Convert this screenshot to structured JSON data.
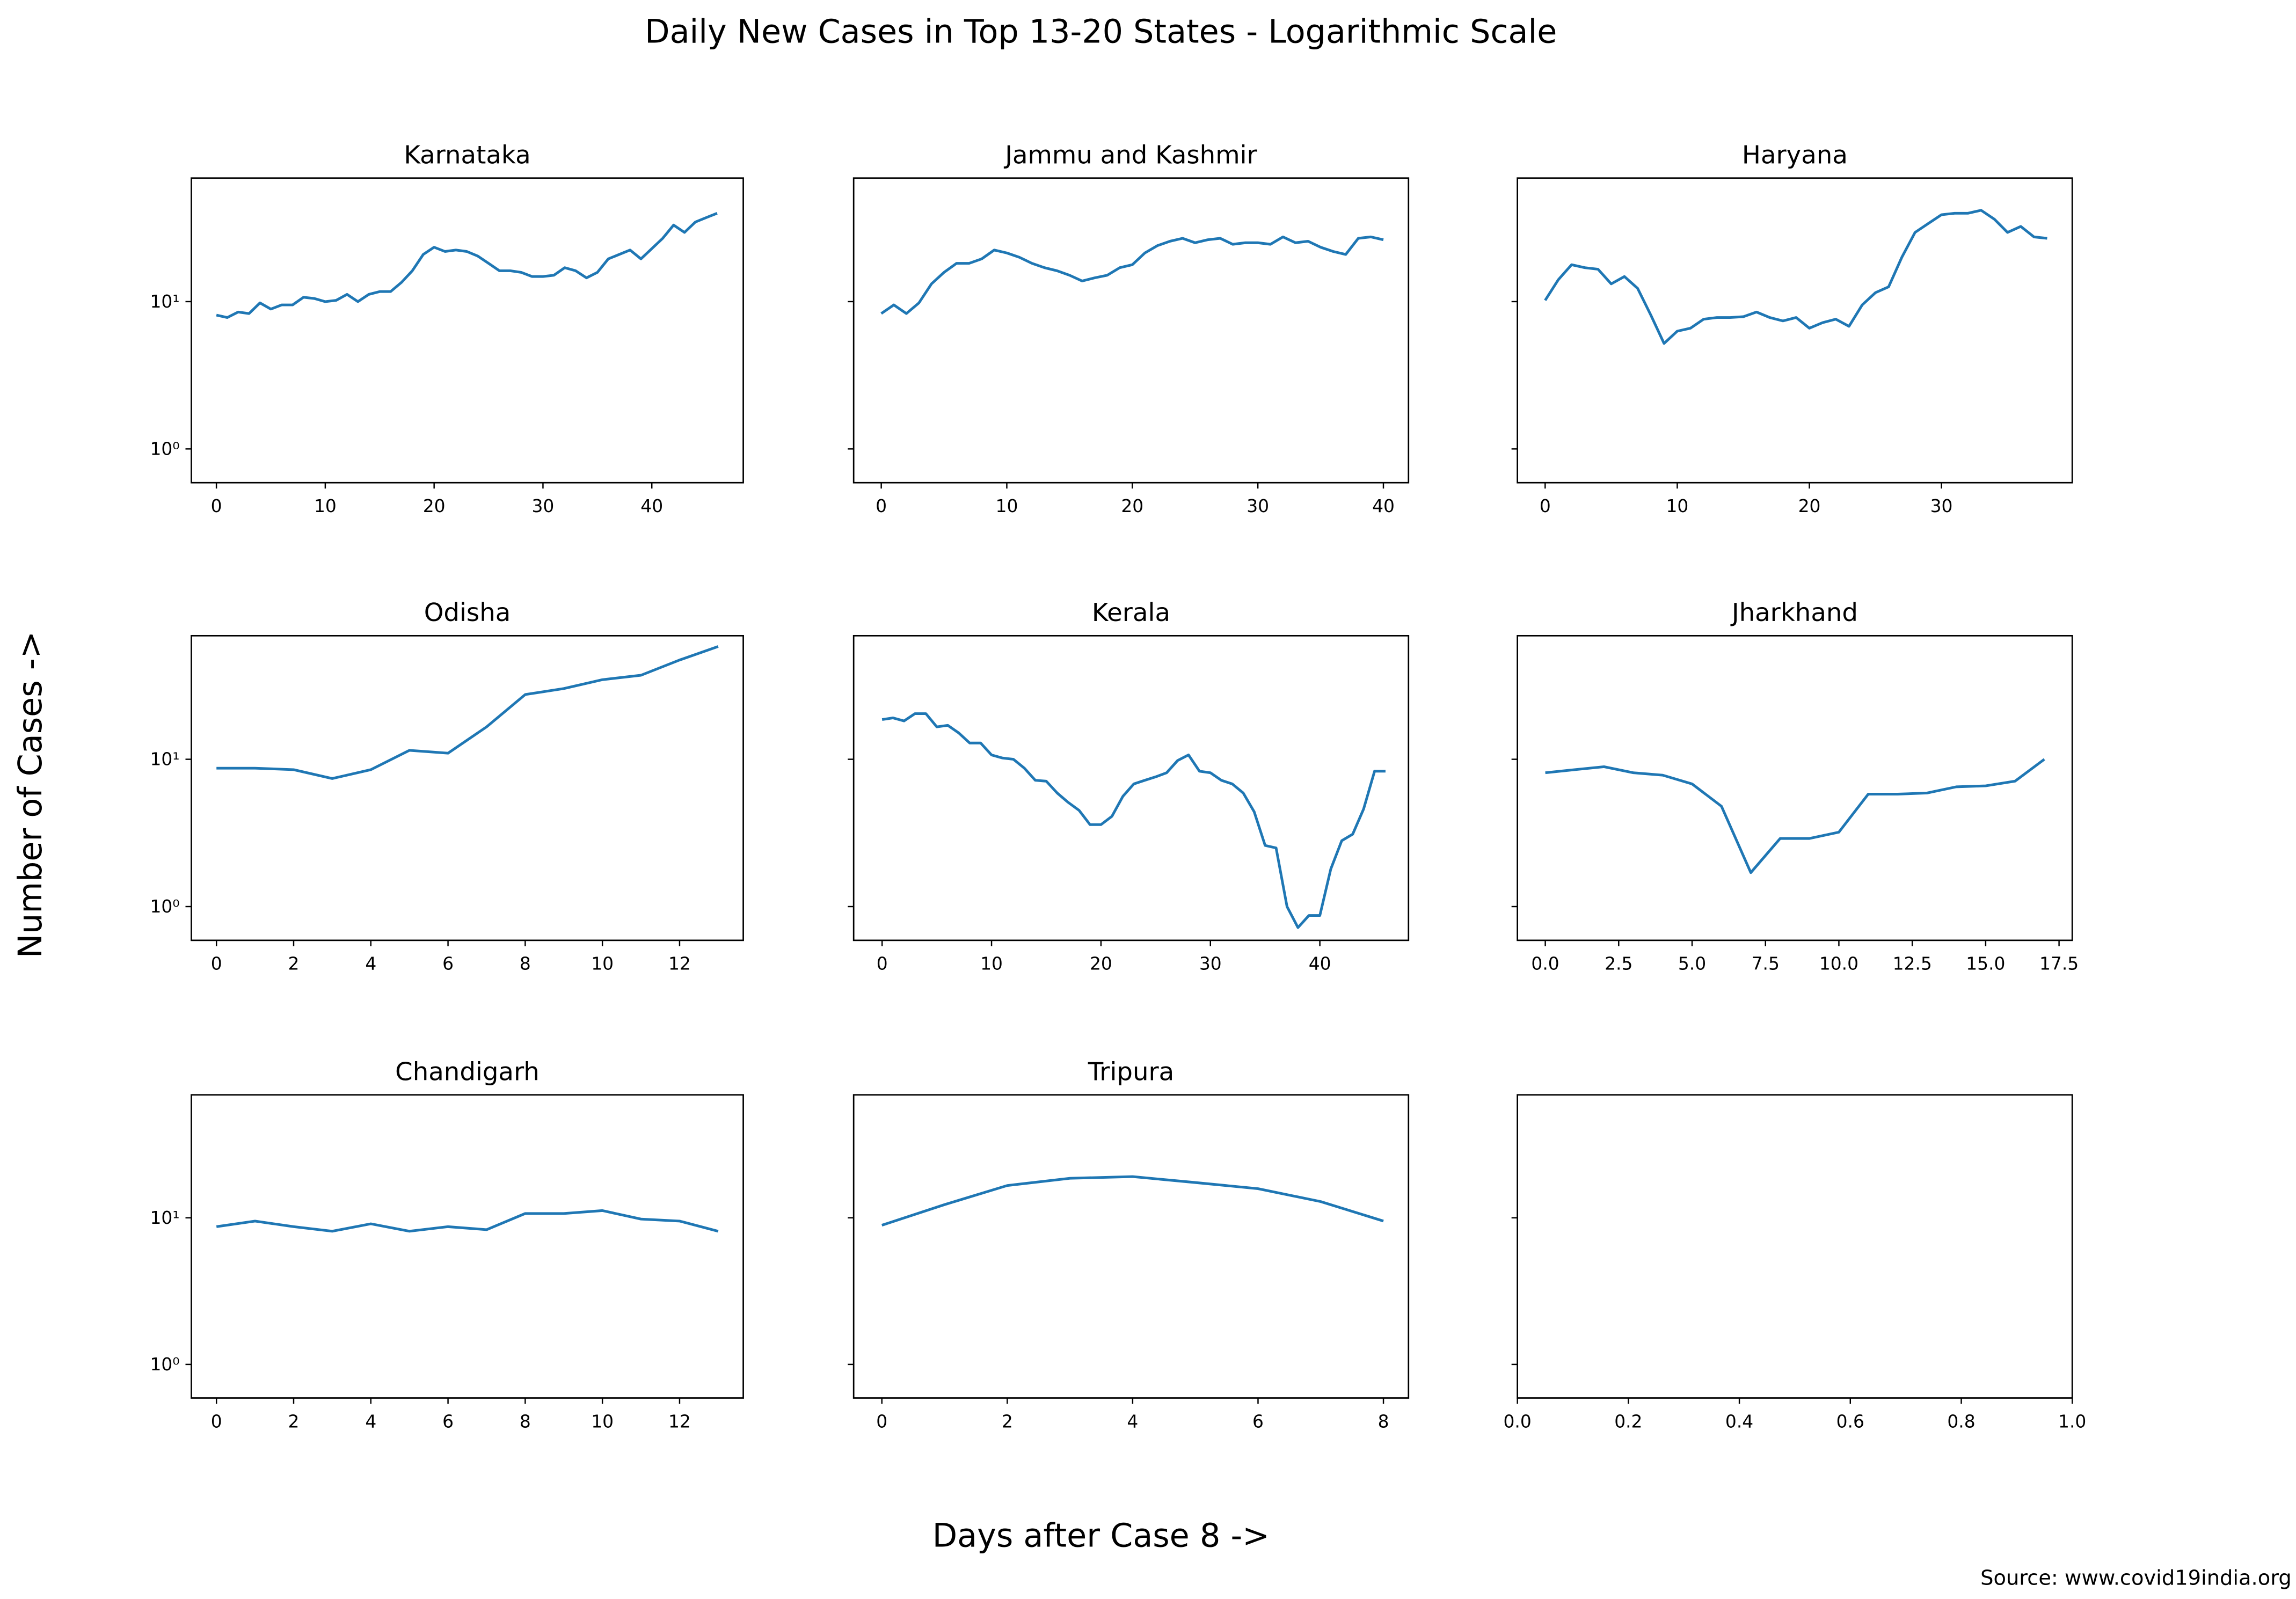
{
  "title": "Daily New Cases in Top 13-20 States - Logarithmic Scale",
  "xlabel": "Days after Case 8 ->",
  "ylabel": "Number of Cases ->",
  "source": "Source: www.covid19india.org",
  "chart_data": [
    {
      "type": "line",
      "title": "Karnataka",
      "color": "#1f77b4",
      "log_scale": true,
      "x": [
        0,
        1,
        2,
        3,
        4,
        5,
        6,
        7,
        8,
        9,
        10,
        11,
        12,
        13,
        14,
        15,
        16,
        17,
        18,
        19,
        20,
        21,
        22,
        23,
        24,
        25,
        26,
        27,
        28,
        29,
        30,
        31,
        32,
        33,
        34,
        35,
        36,
        37,
        38,
        39,
        40,
        41,
        42,
        43,
        44,
        45,
        46
      ],
      "values": [
        8.1,
        7.8,
        8.5,
        8.3,
        9.8,
        8.9,
        9.5,
        9.5,
        10.7,
        10.5,
        10,
        10.2,
        11.2,
        10,
        11.2,
        11.7,
        11.7,
        13.5,
        16.2,
        20.9,
        23.4,
        21.9,
        22.4,
        21.9,
        20.4,
        18.2,
        16.2,
        16.2,
        15.8,
        14.8,
        14.8,
        15.1,
        17,
        16.2,
        14.5,
        15.8,
        19.5,
        20.9,
        22.4,
        19.5,
        22.9,
        26.9,
        33.1,
        29.5,
        34.7,
        37.2,
        39.8
      ],
      "xlim": [
        -2.3,
        48.4
      ],
      "xticks": [
        0,
        10,
        20,
        30,
        40
      ],
      "ylim": [
        0.59,
        69
      ],
      "yticks": [
        {
          "value": 1,
          "label": "10⁰"
        },
        {
          "value": 10,
          "label": "10¹"
        }
      ]
    },
    {
      "type": "line",
      "title": "Jammu and Kashmir",
      "color": "#1f77b4",
      "log_scale": true,
      "x": [
        0,
        1,
        2,
        3,
        4,
        5,
        6,
        7,
        8,
        9,
        10,
        11,
        12,
        13,
        14,
        15,
        16,
        17,
        18,
        19,
        20,
        21,
        22,
        23,
        24,
        25,
        26,
        27,
        28,
        29,
        30,
        31,
        32,
        33,
        34,
        35,
        36,
        37,
        38,
        39,
        40
      ],
      "values": [
        8.3,
        9.5,
        8.3,
        9.8,
        13.2,
        15.8,
        18.2,
        18.2,
        19.5,
        22.4,
        21.4,
        20,
        18.2,
        17,
        16.2,
        15.1,
        13.8,
        14.5,
        15.1,
        17,
        17.8,
        21.4,
        24,
        25.7,
        26.9,
        25.1,
        26.3,
        26.9,
        24.5,
        25.1,
        25.1,
        24.5,
        27.5,
        25.1,
        25.7,
        23.4,
        21.9,
        20.9,
        26.9,
        27.5,
        26.3
      ],
      "xlim": [
        -2.2,
        42
      ],
      "xticks": [
        0,
        10,
        20,
        30,
        40
      ],
      "ylim": [
        0.59,
        69
      ],
      "yticks": [
        1,
        10
      ]
    },
    {
      "type": "line",
      "title": "Haryana",
      "color": "#1f77b4",
      "log_scale": true,
      "x": [
        0,
        1,
        2,
        3,
        4,
        5,
        6,
        7,
        8,
        9,
        10,
        11,
        12,
        13,
        14,
        15,
        16,
        17,
        18,
        19,
        20,
        21,
        22,
        23,
        24,
        25,
        26,
        27,
        28,
        29,
        30,
        31,
        32,
        33,
        34,
        35,
        36,
        37,
        38
      ],
      "values": [
        10.2,
        14.1,
        17.8,
        17,
        16.6,
        13.2,
        14.8,
        12.3,
        8.1,
        5.2,
        6.3,
        6.6,
        7.6,
        7.8,
        7.8,
        7.9,
        8.5,
        7.8,
        7.4,
        7.8,
        6.6,
        7.2,
        7.6,
        6.8,
        9.5,
        11.5,
        12.6,
        20,
        29.5,
        33.9,
        38.9,
        39.8,
        39.8,
        41.7,
        36.3,
        29.5,
        32.4,
        27.5,
        26.9
      ],
      "xlim": [
        -2.1,
        39.9
      ],
      "xticks": [
        0,
        10,
        20,
        30
      ],
      "ylim": [
        0.59,
        69
      ],
      "yticks": [
        1,
        10
      ]
    },
    {
      "type": "line",
      "title": "Odisha",
      "color": "#1f77b4",
      "log_scale": true,
      "x": [
        0,
        1,
        2,
        3,
        4,
        5,
        6,
        7,
        8,
        9,
        10,
        11,
        12,
        13
      ],
      "values": [
        8.7,
        8.7,
        8.5,
        7.4,
        8.5,
        11.5,
        11,
        16.6,
        27.5,
        30.2,
        34.7,
        37.2,
        47.2,
        58.3
      ],
      "xlim": [
        -0.65,
        13.65
      ],
      "xticks": [
        0,
        2,
        4,
        6,
        8,
        10,
        12
      ],
      "ylim": [
        0.59,
        69
      ],
      "yticks": [
        {
          "value": 1,
          "label": "10⁰"
        },
        {
          "value": 10,
          "label": "10¹"
        }
      ]
    },
    {
      "type": "line",
      "title": "Kerala",
      "color": "#1f77b4",
      "log_scale": true,
      "x": [
        0,
        1,
        2,
        3,
        4,
        5,
        6,
        7,
        8,
        9,
        10,
        11,
        12,
        13,
        14,
        15,
        16,
        17,
        18,
        19,
        20,
        21,
        22,
        23,
        24,
        25,
        26,
        27,
        28,
        29,
        30,
        31,
        32,
        33,
        34,
        35,
        36,
        37,
        38,
        39,
        40,
        41,
        42,
        43,
        44,
        45,
        46
      ],
      "values": [
        18.6,
        19.1,
        18.2,
        20.4,
        20.4,
        16.6,
        17,
        15.1,
        12.9,
        12.9,
        10.7,
        10.2,
        10,
        8.7,
        7.2,
        7.1,
        5.9,
        5.1,
        4.5,
        3.6,
        3.6,
        4.1,
        5.6,
        6.8,
        7.2,
        7.6,
        8.1,
        9.8,
        10.7,
        8.3,
        8.1,
        7.2,
        6.8,
        5.9,
        4.4,
        2.6,
        2.5,
        1.0,
        0.72,
        0.87,
        0.87,
        1.8,
        2.8,
        3.1,
        4.6,
        8.3,
        8.3
      ],
      "xlim": [
        -2.6,
        48.1
      ],
      "xticks": [
        0,
        10,
        20,
        30,
        40
      ],
      "ylim": [
        0.59,
        69
      ],
      "yticks": [
        1,
        10
      ]
    },
    {
      "type": "line",
      "title": "Jharkhand",
      "color": "#1f77b4",
      "log_scale": true,
      "x": [
        0,
        1,
        2,
        3,
        4,
        5,
        6,
        7,
        8,
        9,
        10,
        11,
        12,
        13,
        14,
        15,
        16,
        17
      ],
      "values": [
        8.1,
        8.5,
        8.9,
        8.1,
        7.8,
        6.8,
        4.8,
        1.7,
        2.9,
        2.9,
        3.2,
        5.8,
        5.8,
        5.9,
        6.5,
        6.6,
        7.1,
        10
      ],
      "xlim": [
        -0.95,
        17.95
      ],
      "xticks": [
        {
          "value": 0,
          "label": "0.0"
        },
        2.5,
        {
          "value": 5,
          "label": "5.0"
        },
        7.5,
        {
          "value": 10,
          "label": "10.0"
        },
        12.5,
        {
          "value": 15,
          "label": "15.0"
        },
        17.5
      ],
      "ylim": [
        0.59,
        69
      ],
      "yticks": [
        1,
        10
      ]
    },
    {
      "type": "line",
      "title": "Chandigarh",
      "color": "#1f77b4",
      "log_scale": true,
      "x": [
        0,
        1,
        2,
        3,
        4,
        5,
        6,
        7,
        8,
        9,
        10,
        11,
        12,
        13
      ],
      "values": [
        8.7,
        9.5,
        8.7,
        8.1,
        9.1,
        8.1,
        8.7,
        8.3,
        10.7,
        10.7,
        11.2,
        9.8,
        9.5,
        8.1
      ],
      "xlim": [
        -0.65,
        13.65
      ],
      "xticks": [
        0,
        2,
        4,
        6,
        8,
        10,
        12
      ],
      "ylim": [
        0.59,
        69
      ],
      "yticks": [
        {
          "value": 1,
          "label": "10⁰"
        },
        {
          "value": 10,
          "label": "10¹"
        }
      ]
    },
    {
      "type": "line",
      "title": "Tripura",
      "color": "#1f77b4",
      "log_scale": true,
      "x": [
        0,
        1,
        2,
        3,
        4,
        5,
        6,
        7,
        8
      ],
      "values": [
        8.9,
        12.3,
        16.6,
        18.6,
        19.1,
        17.4,
        15.8,
        12.9,
        9.5
      ],
      "xlim": [
        -0.45,
        8.4
      ],
      "xticks": [
        0,
        2,
        4,
        6,
        8
      ],
      "ylim": [
        0.59,
        69
      ],
      "yticks": [
        1,
        10
      ]
    },
    {
      "type": "line",
      "log_scale": true,
      "xlim": [
        0,
        1
      ],
      "xticks": [
        {
          "value": 0,
          "label": "0.0"
        },
        0.2,
        0.4,
        0.6,
        0.8,
        {
          "value": 1,
          "label": "1.0"
        }
      ],
      "ylim": [
        0.59,
        69
      ],
      "yticks": [
        1,
        10
      ]
    }
  ]
}
